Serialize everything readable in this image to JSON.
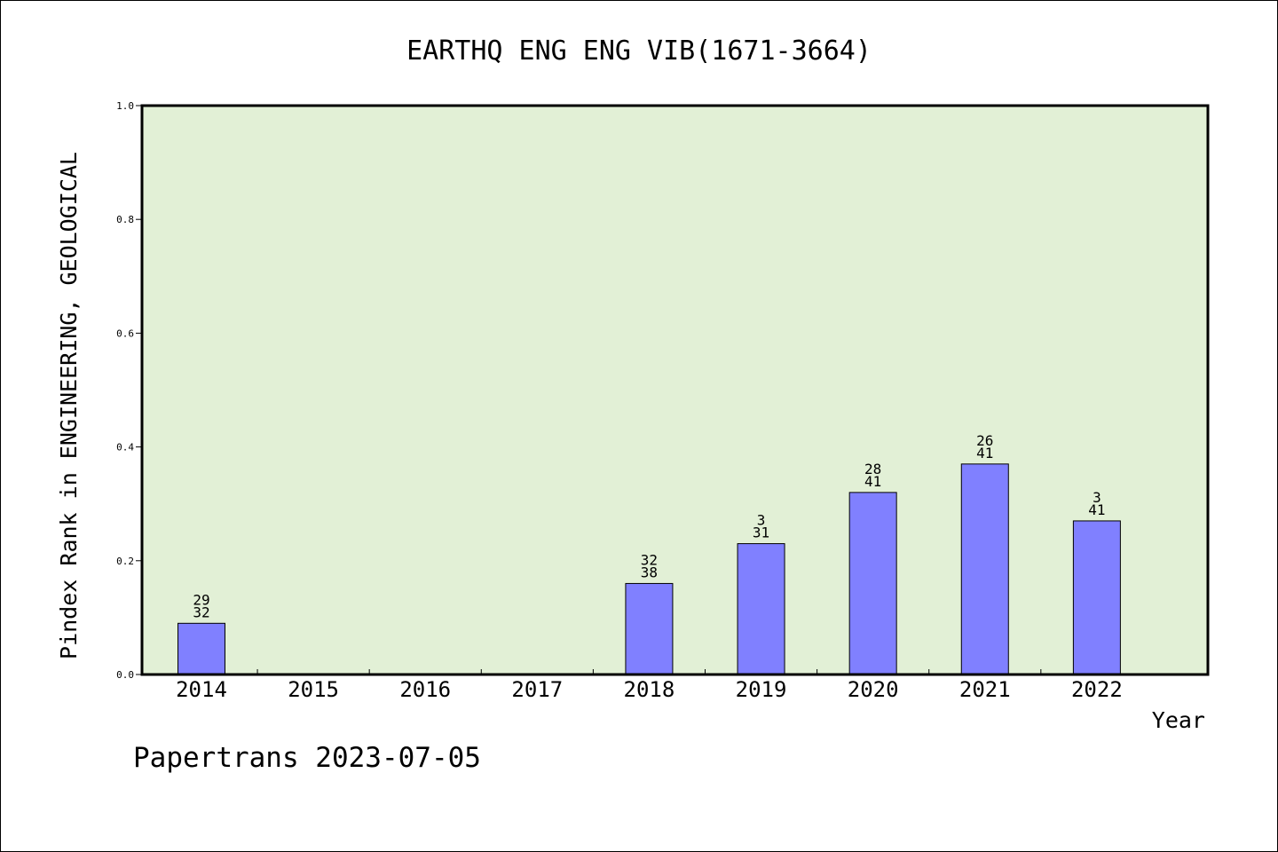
{
  "chart_data": {
    "type": "bar",
    "title": "EARTHQ ENG ENG VIB(1671-3664)",
    "xlabel": "Year",
    "ylabel": "Pindex Rank in ENGINEERING, GEOLOGICAL",
    "categories": [
      "2014",
      "2015",
      "2016",
      "2017",
      "2018",
      "2019",
      "2020",
      "2021",
      "2022"
    ],
    "values": [
      0.09,
      null,
      null,
      null,
      0.16,
      0.23,
      0.32,
      0.37,
      0.27
    ],
    "bar_labels": [
      [
        "29",
        "32"
      ],
      null,
      null,
      null,
      [
        "32",
        "38"
      ],
      [
        "3",
        "31"
      ],
      [
        "28",
        "41"
      ],
      [
        "26",
        "41"
      ],
      [
        "3",
        "41"
      ]
    ],
    "ylim": [
      0,
      1.0
    ],
    "yticks": [
      "0.0",
      "0.2",
      "0.4",
      "0.6",
      "0.8",
      "1.0"
    ],
    "grid": false,
    "colors": {
      "plot_background": "#e2f0d6",
      "bar_fill": "#8080ff",
      "bar_stroke": "#000000"
    }
  },
  "footer": "Papertrans 2023-07-05"
}
